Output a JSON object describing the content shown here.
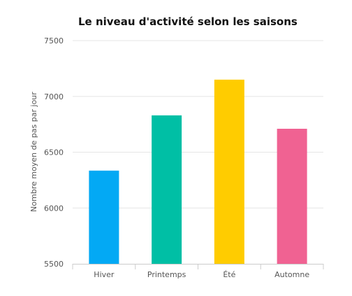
{
  "chart_data": {
    "type": "bar",
    "title": "Le niveau d'activité selon les saisons",
    "xlabel": "",
    "ylabel": "Nombre moyen de pas par jour",
    "categories": [
      "Hiver",
      "Printemps",
      "Été",
      "Automne"
    ],
    "values": [
      6335,
      6830,
      7150,
      6710
    ],
    "colors": [
      "#03a9f4",
      "#00bfa5",
      "#ffcc00",
      "#f06292"
    ],
    "ylim": [
      5500,
      7500
    ],
    "yticks": [
      "5500",
      "6000",
      "6500",
      "7000",
      "7500"
    ],
    "grid": true,
    "legend": "none"
  }
}
